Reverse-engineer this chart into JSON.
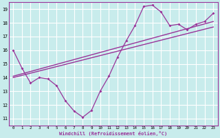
{
  "xlabel": "Windchill (Refroidissement éolien,°C)",
  "bg_color": "#c8ecec",
  "grid_color": "#ffffff",
  "line_color": "#993399",
  "xmin": 0,
  "xmax": 23,
  "ymin": 11,
  "ymax": 19,
  "x_ticks": [
    0,
    1,
    2,
    3,
    4,
    5,
    6,
    7,
    8,
    9,
    10,
    11,
    12,
    13,
    14,
    15,
    16,
    17,
    18,
    19,
    20,
    21,
    22,
    23
  ],
  "y_ticks": [
    11,
    12,
    13,
    14,
    15,
    16,
    17,
    18,
    19
  ],
  "zigzag_x": [
    0,
    1,
    2,
    3,
    4,
    5,
    6,
    7,
    8,
    9,
    10,
    11,
    12,
    13,
    14,
    15,
    16,
    17,
    18,
    19,
    20,
    21,
    22,
    23
  ],
  "zigzag_y": [
    16.0,
    14.7,
    13.6,
    14.0,
    13.9,
    13.4,
    12.3,
    11.55,
    11.1,
    11.6,
    13.0,
    14.1,
    15.5,
    16.7,
    17.8,
    19.2,
    19.3,
    18.8,
    17.8,
    17.9,
    17.5,
    17.9,
    18.1,
    18.7
  ],
  "trend1_x": [
    0,
    23
  ],
  "trend1_y": [
    14.1,
    18.1
  ],
  "trend2_x": [
    0,
    23
  ],
  "trend2_y": [
    14.0,
    17.7
  ]
}
